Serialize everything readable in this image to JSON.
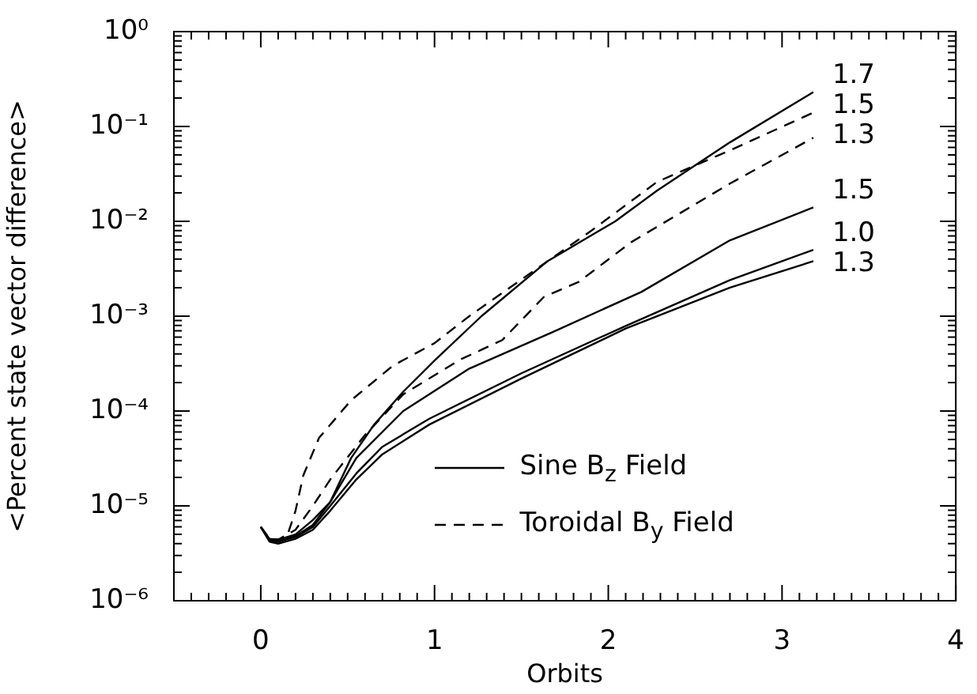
{
  "chart_data": {
    "type": "line",
    "xlabel": "Orbits",
    "ylabel": "<Percent state vector difference>",
    "log": "y",
    "xlim": [
      -0.5,
      4
    ],
    "ylim": [
      1e-06,
      1
    ],
    "xticks": [
      {
        "value": -0.4,
        "label": null
      },
      {
        "value": -0.3,
        "label": null
      },
      {
        "value": -0.2,
        "label": null
      },
      {
        "value": -0.1,
        "label": null
      },
      0,
      {
        "value": 0.1,
        "label": null
      },
      {
        "value": 0.2,
        "label": null
      },
      {
        "value": 0.3,
        "label": null
      },
      {
        "value": 0.4,
        "label": null
      },
      {
        "value": 0.5,
        "label": null
      },
      {
        "value": 0.6,
        "label": null
      },
      {
        "value": 0.7,
        "label": null
      },
      {
        "value": 0.8,
        "label": null
      },
      {
        "value": 0.9,
        "label": null
      },
      1,
      {
        "value": 1.1,
        "label": null
      },
      {
        "value": 1.2,
        "label": null
      },
      {
        "value": 1.3,
        "label": null
      },
      {
        "value": 1.4,
        "label": null
      },
      {
        "value": 1.5,
        "label": null
      },
      {
        "value": 1.6,
        "label": null
      },
      {
        "value": 1.7,
        "label": null
      },
      {
        "value": 1.8,
        "label": null
      },
      {
        "value": 1.9,
        "label": null
      },
      2,
      {
        "value": 2.1,
        "label": null
      },
      {
        "value": 2.2,
        "label": null
      },
      {
        "value": 2.3,
        "label": null
      },
      {
        "value": 2.4,
        "label": null
      },
      {
        "value": 2.5,
        "label": null
      },
      {
        "value": 2.6,
        "label": null
      },
      {
        "value": 2.7,
        "label": null
      },
      {
        "value": 2.8,
        "label": null
      },
      {
        "value": 2.9,
        "label": null
      },
      3,
      {
        "value": 3.1,
        "label": null
      },
      {
        "value": 3.2,
        "label": null
      },
      {
        "value": 3.3,
        "label": null
      },
      {
        "value": 3.4,
        "label": null
      },
      {
        "value": 3.5,
        "label": null
      },
      {
        "value": 3.6,
        "label": null
      },
      {
        "value": 3.7,
        "label": null
      },
      {
        "value": 3.8,
        "label": null
      },
      {
        "value": 3.9,
        "label": null
      },
      4
    ],
    "yticks": [
      {
        "value": 1e-06,
        "label": "10⁻⁶"
      },
      {
        "value": 2e-06,
        "label": null
      },
      {
        "value": 3e-06,
        "label": null
      },
      {
        "value": 4e-06,
        "label": null
      },
      {
        "value": 5e-06,
        "label": null
      },
      {
        "value": 6e-06,
        "label": null
      },
      {
        "value": 7e-06,
        "label": null
      },
      {
        "value": 8e-06,
        "label": null
      },
      {
        "value": 9e-06,
        "label": null
      },
      {
        "value": 1e-05,
        "label": "10⁻⁵"
      },
      {
        "value": 2e-05,
        "label": null
      },
      {
        "value": 3e-05,
        "label": null
      },
      {
        "value": 4e-05,
        "label": null
      },
      {
        "value": 5e-05,
        "label": null
      },
      {
        "value": 6e-05,
        "label": null
      },
      {
        "value": 7e-05,
        "label": null
      },
      {
        "value": 8e-05,
        "label": null
      },
      {
        "value": 9e-05,
        "label": null
      },
      {
        "value": 0.0001,
        "label": "10⁻⁴"
      },
      {
        "value": 0.0002,
        "label": null
      },
      {
        "value": 0.0003,
        "label": null
      },
      {
        "value": 0.0004,
        "label": null
      },
      {
        "value": 0.0005,
        "label": null
      },
      {
        "value": 0.0006,
        "label": null
      },
      {
        "value": 0.0007,
        "label": null
      },
      {
        "value": 0.0008,
        "label": null
      },
      {
        "value": 0.0009,
        "label": null
      },
      {
        "value": 0.001,
        "label": "10⁻³"
      },
      {
        "value": 0.002,
        "label": null
      },
      {
        "value": 0.003,
        "label": null
      },
      {
        "value": 0.004,
        "label": null
      },
      {
        "value": 0.005,
        "label": null
      },
      {
        "value": 0.006,
        "label": null
      },
      {
        "value": 0.007,
        "label": null
      },
      {
        "value": 0.008,
        "label": null
      },
      {
        "value": 0.009,
        "label": null
      },
      {
        "value": 0.01,
        "label": "10⁻²"
      },
      {
        "value": 0.02,
        "label": null
      },
      {
        "value": 0.03,
        "label": null
      },
      {
        "value": 0.04,
        "label": null
      },
      {
        "value": 0.05,
        "label": null
      },
      {
        "value": 0.06,
        "label": null
      },
      {
        "value": 0.07,
        "label": null
      },
      {
        "value": 0.08,
        "label": null
      },
      {
        "value": 0.09,
        "label": null
      },
      {
        "value": 0.1,
        "label": "10⁻¹"
      },
      {
        "value": 0.2,
        "label": null
      },
      {
        "value": 0.3,
        "label": null
      },
      {
        "value": 0.4,
        "label": null
      },
      {
        "value": 0.5,
        "label": null
      },
      {
        "value": 0.6,
        "label": null
      },
      {
        "value": 0.7,
        "label": null
      },
      {
        "value": 0.8,
        "label": null
      },
      {
        "value": 0.9,
        "label": null
      },
      {
        "value": 1,
        "label": "10⁰"
      }
    ],
    "marker": "none",
    "annotations": [
      "Sine B$_{z}$ Field",
      "Toroidal B$_{y}$ Field"
    ],
    "series": [
      {
        "name": "1.7",
        "color": "#000000",
        "line_style": "solid",
        "x": [
          0,
          0.05,
          0.1,
          0.2,
          0.3,
          0.4,
          0.52,
          0.65,
          0.82,
          1.0,
          1.27,
          1.65,
          2.04,
          2.28,
          2.7,
          3.18
        ],
        "values": [
          6e-06,
          4.5e-06,
          4.4e-06,
          5e-06,
          7.1e-06,
          1.1e-05,
          3.2e-05,
          7.1e-05,
          0.00016,
          0.00034,
          0.001,
          0.0038,
          0.01,
          0.021,
          0.068,
          0.23
        ]
      },
      {
        "name": "1.5",
        "color": "#000000",
        "line_style": "dashed",
        "x": [
          0,
          0.05,
          0.1,
          0.15,
          0.2,
          0.245,
          0.335,
          0.52,
          0.76,
          1.0,
          1.2,
          1.57,
          1.9,
          2.28,
          2.7,
          3.18
        ],
        "values": [
          6e-06,
          4.5e-06,
          4.4e-06,
          4.7e-06,
          8.9e-06,
          2.1e-05,
          5.2e-05,
          0.00013,
          0.0003,
          0.00052,
          0.001,
          0.003,
          0.0079,
          0.026,
          0.056,
          0.14
        ]
      },
      {
        "name": "1.3",
        "color": "#000000",
        "line_style": "dashed",
        "x": [
          0,
          0.05,
          0.1,
          0.2,
          0.3,
          0.4,
          0.6,
          0.82,
          1.15,
          1.39,
          1.63,
          1.83,
          2.13,
          2.7,
          3.18
        ],
        "values": [
          6e-06,
          4.5e-06,
          4.4e-06,
          5.6e-06,
          1e-05,
          1.9e-05,
          5.6e-05,
          0.00015,
          0.00035,
          0.00056,
          0.0016,
          0.0023,
          0.006,
          0.025,
          0.076
        ]
      },
      {
        "name": "1.5",
        "color": "#000000",
        "line_style": "solid",
        "x": [
          0,
          0.05,
          0.1,
          0.2,
          0.3,
          0.4,
          0.55,
          0.82,
          1.2,
          1.68,
          2.19,
          2.7,
          3.18
        ],
        "values": [
          6e-06,
          4.4e-06,
          4.2e-06,
          4.8e-06,
          6.3e-06,
          1.1e-05,
          3.2e-05,
          0.0001,
          0.00028,
          0.00068,
          0.0018,
          0.0063,
          0.014
        ]
      },
      {
        "name": "1.0",
        "color": "#000000",
        "line_style": "solid",
        "x": [
          0,
          0.05,
          0.1,
          0.2,
          0.3,
          0.4,
          0.55,
          0.7,
          0.97,
          1.5,
          2.1,
          2.7,
          3.18
        ],
        "values": [
          6e-06,
          4.3e-06,
          4.2e-06,
          4.7e-06,
          6e-06,
          1e-05,
          2.2e-05,
          4.2e-05,
          8.3e-05,
          0.00025,
          0.00079,
          0.0024,
          0.005
        ]
      },
      {
        "name": "1.3",
        "color": "#000000",
        "line_style": "solid",
        "x": [
          0,
          0.05,
          0.1,
          0.2,
          0.3,
          0.4,
          0.55,
          0.7,
          0.97,
          1.5,
          2.1,
          2.7,
          3.18
        ],
        "values": [
          6e-06,
          4.2e-06,
          4e-06,
          4.5e-06,
          5.6e-06,
          8.9e-06,
          1.9e-05,
          3.5e-05,
          7.2e-05,
          0.00022,
          0.00074,
          0.002,
          0.0038
        ]
      }
    ]
  }
}
